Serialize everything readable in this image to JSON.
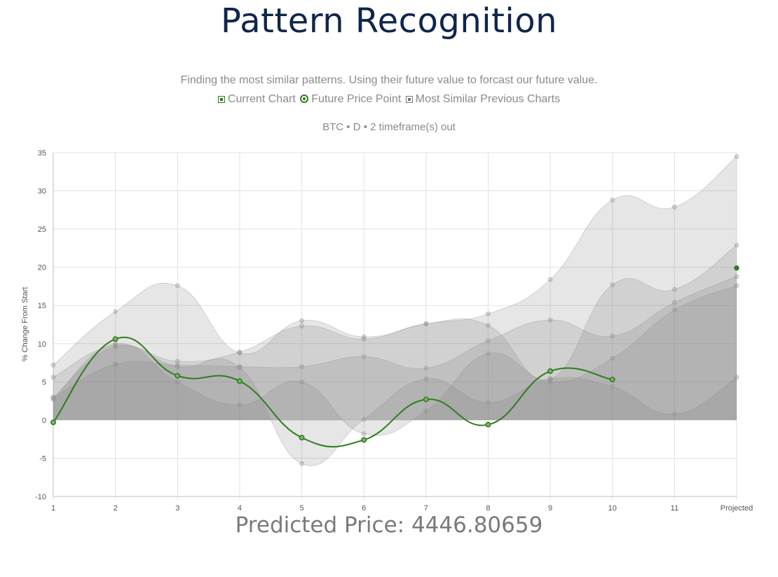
{
  "title": "Pattern Recognition",
  "subtitle": "Finding the most similar patterns. Using their future value to forcast our future value.",
  "legend": {
    "current": "Current Chart",
    "future": "Future Price Point",
    "similar": "Most Similar Previous Charts"
  },
  "meta": "BTC • D • 2 timeframe(s) out",
  "prediction": "Predicted Price: 4446.80659",
  "colors": {
    "current": "#2e7d1f",
    "similar_fill": "rgba(120,120,120,0.19)",
    "similar_stroke": "rgba(150,150,150,0.35)",
    "grid": "#e2e2e2"
  },
  "chart_data": {
    "type": "area",
    "categories": [
      "1",
      "2",
      "3",
      "4",
      "5",
      "6",
      "7",
      "8",
      "9",
      "10",
      "11",
      "Projected"
    ],
    "ylabel": "% Change From Start",
    "xlabel": "",
    "ylim": [
      -10,
      35
    ],
    "yticks": [
      35,
      30,
      25,
      20,
      15,
      10,
      5,
      0,
      -5,
      -10
    ],
    "grid": true,
    "series": [
      {
        "role": "current",
        "values": [
          -0.3,
          10.6,
          5.8,
          5.1,
          -2.3,
          -2.6,
          2.7,
          -0.6,
          6.4,
          5.3,
          null,
          null
        ]
      },
      {
        "role": "future",
        "values": [
          null,
          null,
          null,
          null,
          null,
          null,
          null,
          null,
          null,
          null,
          null,
          19.9
        ]
      },
      {
        "role": "similar",
        "values": [
          7.2,
          14.2,
          17.6,
          8.8,
          13.0,
          10.9,
          12.6,
          13.9,
          18.4,
          28.8,
          27.9,
          34.5
        ]
      },
      {
        "role": "similar",
        "values": [
          5.6,
          9.8,
          7.7,
          8.9,
          12.3,
          10.6,
          12.6,
          12.4,
          5.4,
          17.7,
          17.1,
          22.9
        ]
      },
      {
        "role": "similar",
        "values": [
          2.9,
          7.3,
          7.2,
          7.0,
          7.0,
          8.3,
          6.8,
          10.4,
          13.1,
          11.0,
          15.4,
          18.8
        ]
      },
      {
        "role": "similar",
        "values": [
          2.7,
          10.0,
          5.0,
          2.0,
          5.0,
          -1.8,
          1.2,
          8.7,
          5.0,
          8.1,
          14.4,
          17.6
        ]
      },
      {
        "role": "similar",
        "values": [
          3.0,
          9.6,
          7.0,
          6.9,
          -5.7,
          0.1,
          5.4,
          2.3,
          5.4,
          4.4,
          0.8,
          5.6
        ]
      }
    ]
  }
}
